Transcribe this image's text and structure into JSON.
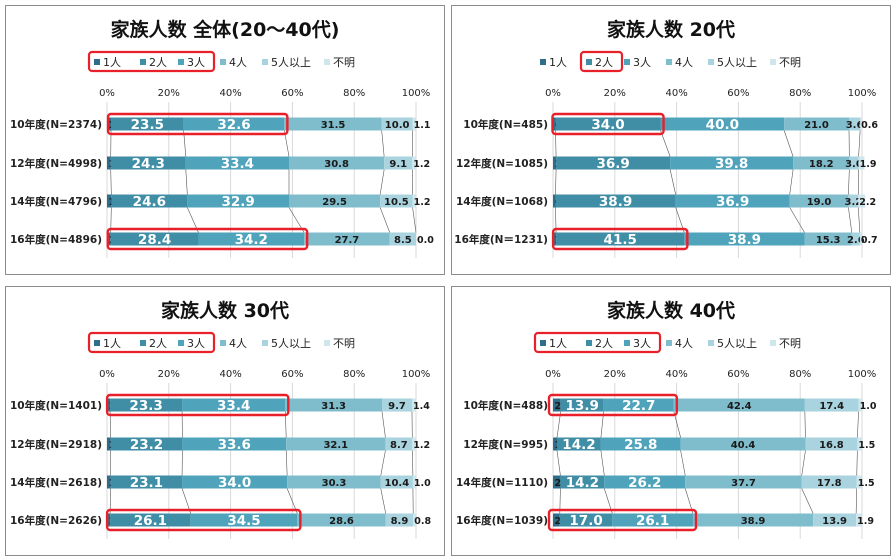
{
  "colors": {
    "seg": [
      "#2e6e8a",
      "#3f8ea6",
      "#4fa3bb",
      "#7fbccc",
      "#a9d3de",
      "#cfe6ec"
    ],
    "highlight": "#e8202a",
    "grid": "#d9d9d9",
    "connector": "#555555"
  },
  "legend_labels": [
    "1人",
    "2人",
    "3人",
    "4人",
    "5人以上",
    "不明"
  ],
  "axis_ticks": [
    "0%",
    "20%",
    "40%",
    "60%",
    "80%",
    "100%"
  ],
  "chart_data": [
    {
      "type": "bar",
      "stacked": true,
      "orientation": "horizontal",
      "title": "家族人数 全体(20～40代)",
      "categories": [
        "10年度(N=2374)",
        "12年度(N=4998)",
        "14年度(N=4796)",
        "16年度(N=4896)"
      ],
      "series": [
        {
          "name": "1人",
          "values": [
            1.3,
            1.2,
            1.4,
            1.2
          ]
        },
        {
          "name": "2人",
          "values": [
            23.5,
            24.3,
            24.6,
            28.4
          ]
        },
        {
          "name": "3人",
          "values": [
            32.6,
            33.4,
            32.9,
            34.2
          ]
        },
        {
          "name": "4人",
          "values": [
            31.5,
            30.8,
            29.5,
            27.7
          ]
        },
        {
          "name": "5人以上",
          "values": [
            10.0,
            9.1,
            10.5,
            8.5
          ]
        },
        {
          "name": "不明",
          "values": [
            1.1,
            1.2,
            1.2,
            0.0
          ]
        }
      ],
      "xlim": [
        0,
        100
      ],
      "legend_highlight": [
        0,
        2
      ],
      "bar_highlights": [
        {
          "row": 0,
          "from": 1,
          "to": 2
        },
        {
          "row": 3,
          "from": 1,
          "to": 2
        }
      ]
    },
    {
      "type": "bar",
      "stacked": true,
      "orientation": "horizontal",
      "title": "家族人数 20代",
      "categories": [
        "10年度(N=485)",
        "12年度(N=1085)",
        "14年度(N=1068)",
        "16年度(N＝1231)"
      ],
      "series": [
        {
          "name": "1人",
          "values": [
            0.8,
            1.0,
            0.8,
            1.0
          ]
        },
        {
          "name": "2人",
          "values": [
            34.0,
            36.9,
            38.9,
            41.5
          ]
        },
        {
          "name": "3人",
          "values": [
            40.0,
            39.8,
            36.9,
            38.9
          ]
        },
        {
          "name": "4人",
          "values": [
            21.0,
            18.2,
            19.0,
            15.3
          ]
        },
        {
          "name": "5人以上",
          "values": [
            3.6,
            3.0,
            3.2,
            2.6
          ]
        },
        {
          "name": "不明",
          "values": [
            0.6,
            1.9,
            2.2,
            0.7
          ]
        }
      ],
      "xlim": [
        0,
        100
      ],
      "legend_highlight": [
        1,
        1
      ],
      "bar_highlights": [
        {
          "row": 0,
          "from": 1,
          "to": 1
        },
        {
          "row": 3,
          "from": 1,
          "to": 1
        }
      ]
    },
    {
      "type": "bar",
      "stacked": true,
      "orientation": "horizontal",
      "title": "家族人数 30代",
      "categories": [
        "10年度(N=1401)",
        "12年度(N=2918)",
        "14年度(N=2618)",
        "16年度(N=2626)"
      ],
      "series": [
        {
          "name": "1人",
          "values": [
            1.0,
            1.2,
            1.2,
            1.0
          ]
        },
        {
          "name": "2人",
          "values": [
            23.3,
            23.2,
            23.1,
            26.1
          ]
        },
        {
          "name": "3人",
          "values": [
            33.4,
            33.6,
            34.0,
            34.5
          ]
        },
        {
          "name": "4人",
          "values": [
            31.3,
            32.1,
            30.3,
            28.6
          ]
        },
        {
          "name": "5人以上",
          "values": [
            9.7,
            8.7,
            10.4,
            8.9
          ]
        },
        {
          "name": "不明",
          "values": [
            1.4,
            1.2,
            1.0,
            0.8
          ]
        }
      ],
      "xlim": [
        0,
        100
      ],
      "legend_highlight": [
        0,
        2
      ],
      "bar_highlights": [
        {
          "row": 0,
          "from": 1,
          "to": 2
        },
        {
          "row": 3,
          "from": 1,
          "to": 2
        }
      ]
    },
    {
      "type": "bar",
      "stacked": true,
      "orientation": "horizontal",
      "title": "家族人数 40代",
      "categories": [
        "10年度(N=488)",
        "12年度(N=995)",
        "14年度(N=1110)",
        "16年度(N=1039)"
      ],
      "series": [
        {
          "name": "1人",
          "values": [
            2.5,
            1.3,
            2.4,
            2.2
          ]
        },
        {
          "name": "2人",
          "values": [
            13.9,
            14.2,
            14.2,
            17.0
          ]
        },
        {
          "name": "3人",
          "values": [
            22.7,
            25.8,
            26.2,
            26.1
          ]
        },
        {
          "name": "4人",
          "values": [
            42.4,
            40.4,
            37.7,
            38.9
          ]
        },
        {
          "name": "5人以上",
          "values": [
            17.4,
            16.8,
            17.8,
            13.9
          ]
        },
        {
          "name": "不明",
          "values": [
            1.0,
            1.5,
            1.5,
            1.9
          ]
        }
      ],
      "xlim": [
        0,
        100
      ],
      "legend_highlight": [
        0,
        2
      ],
      "bar_highlights": [
        {
          "row": 0,
          "from": 0,
          "to": 2
        },
        {
          "row": 3,
          "from": 0,
          "to": 2
        }
      ]
    }
  ]
}
